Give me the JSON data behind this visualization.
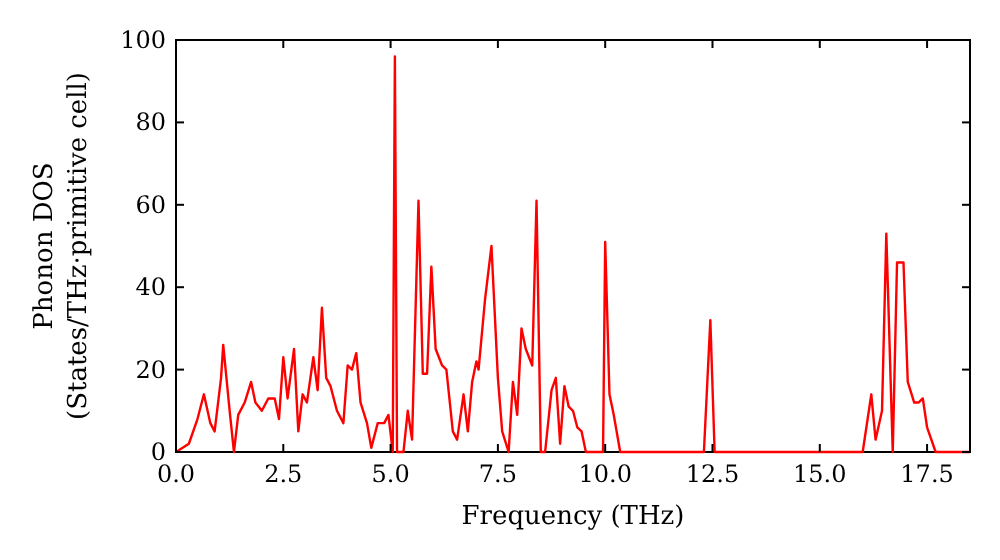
{
  "chart_data": {
    "type": "line",
    "xlabel": "Frequency (THz)",
    "ylabel": "Phonon DOS\n(States/THz·primitive cell)",
    "xlim": [
      0,
      18.5
    ],
    "ylim": [
      0,
      100
    ],
    "xticks": [
      {
        "value": 0,
        "label": "0.0"
      },
      {
        "value": 2.5,
        "label": "2.5"
      },
      {
        "value": 5,
        "label": "5.0"
      },
      {
        "value": 7.5,
        "label": "7.5"
      },
      {
        "value": 10,
        "label": "10.0"
      },
      {
        "value": 12.5,
        "label": "12.5"
      },
      {
        "value": 15,
        "label": "15.0"
      },
      {
        "value": 17.5,
        "label": "17.5"
      }
    ],
    "yticks": [
      0,
      20,
      40,
      60,
      80,
      100
    ],
    "grid": false,
    "marker": "none",
    "line_style": "solid",
    "series": [
      {
        "color": "#ff0000",
        "x": [
          0,
          0.3,
          0.5,
          0.65,
          0.8,
          0.9,
          1.05,
          1.1,
          1.25,
          1.35,
          1.45,
          1.6,
          1.75,
          1.85,
          2,
          2.15,
          2.3,
          2.4,
          2.5,
          2.6,
          2.75,
          2.85,
          2.95,
          3.05,
          3.2,
          3.3,
          3.4,
          3.5,
          3.6,
          3.75,
          3.9,
          4,
          4.1,
          4.2,
          4.3,
          4.45,
          4.55,
          4.7,
          4.85,
          4.95,
          5.05,
          5.1,
          5.15,
          5.3,
          5.4,
          5.5,
          5.65,
          5.75,
          5.85,
          5.95,
          6.05,
          6.2,
          6.3,
          6.45,
          6.55,
          6.7,
          6.8,
          6.9,
          7,
          7.05,
          7.2,
          7.35,
          7.5,
          7.6,
          7.75,
          7.85,
          7.95,
          8.05,
          8.15,
          8.3,
          8.4,
          8.5,
          8.6,
          8.75,
          8.85,
          8.95,
          9.05,
          9.15,
          9.25,
          9.35,
          9.45,
          9.55,
          9.8,
          9.95,
          10,
          10.1,
          10.2,
          10.35,
          12.3,
          12.45,
          12.55,
          16,
          16.2,
          16.3,
          16.45,
          16.55,
          16.7,
          16.8,
          16.95,
          17.05,
          17.2,
          17.3,
          17.4,
          17.5,
          17.7,
          18.5
        ],
        "values": [
          0,
          2,
          8,
          14,
          7,
          5,
          18,
          26,
          10,
          0,
          9,
          12,
          17,
          12,
          10,
          13,
          13,
          8,
          23,
          13,
          25,
          5,
          14,
          12,
          23,
          15,
          35,
          18,
          16,
          10,
          7,
          21,
          20,
          24,
          12,
          7,
          1,
          7,
          7,
          9,
          0,
          96,
          0,
          0,
          10,
          3,
          61,
          19,
          19,
          45,
          25,
          21,
          20,
          5,
          3,
          14,
          5,
          17,
          22,
          20,
          37,
          50,
          18,
          5,
          0,
          17,
          9,
          30,
          25,
          21,
          61,
          0,
          0,
          15,
          18,
          2,
          16,
          11,
          10,
          6,
          5,
          0,
          0,
          0,
          51,
          14,
          9,
          0,
          0,
          32,
          0,
          0,
          14,
          3,
          10,
          53,
          0,
          46,
          46,
          17,
          12,
          12,
          13,
          6,
          0,
          0
        ]
      }
    ]
  }
}
